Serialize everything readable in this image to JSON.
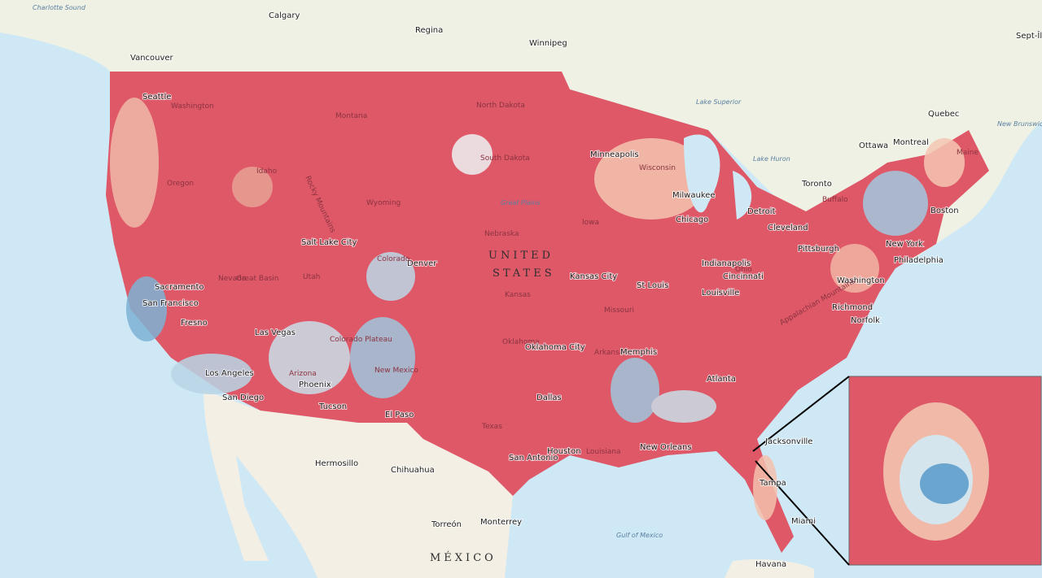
{
  "map": {
    "labels": [
      "Charlotte Sound",
      "Calgary",
      "Regina",
      "Winnipeg",
      "Vancouver",
      "Seattle",
      "Washington",
      "Montana",
      "North Dakota",
      "South Dakota",
      "Oregon",
      "Idaho",
      "Wyoming",
      "Great Plains",
      "Nebraska",
      "UNITED",
      "STATES",
      "Minneapolis",
      "Wisconsin",
      "Lake Superior",
      "Lake Huron",
      "Sept-Îles",
      "Quebec",
      "Ottawa",
      "Montreal",
      "New Brunswick",
      "Maine",
      "Toronto",
      "Buffalo",
      "Boston",
      "New York",
      "Philadelphia",
      "Washington",
      "Richmond",
      "Norfolk",
      "Detroit",
      "Cleveland",
      "Pittsburgh",
      "Chicago",
      "Milwaukee",
      "Iowa",
      "Indianapolis",
      "Cincinnati",
      "Louisville",
      "St Louis",
      "Kansas City",
      "Kansas",
      "Missouri",
      "Denver",
      "Salt Lake City",
      "Utah",
      "Great Basin",
      "Sacramento",
      "San Francisco",
      "Fresno",
      "Las Vegas",
      "Colorado Plateau",
      "Los Angeles",
      "San Diego",
      "Arizona",
      "Phoenix",
      "Tucson",
      "New Mexico",
      "El Paso",
      "Oklahoma",
      "Oklahoma City",
      "Arkansas",
      "Memphis",
      "Atlanta",
      "Dallas",
      "Texas",
      "San Antonio",
      "Houston",
      "Louisiana",
      "New Orleans",
      "Jacksonville",
      "Tampa",
      "Miami",
      "Gulf of Mexico",
      "Havana",
      "Hermosillo",
      "Chihuahua",
      "Torreón",
      "Monterrey",
      "MÉXICO",
      "Rocky Mountains",
      "Appalachian Mountains",
      "Nevada",
      "Colorado",
      "Ohio"
    ]
  }
}
